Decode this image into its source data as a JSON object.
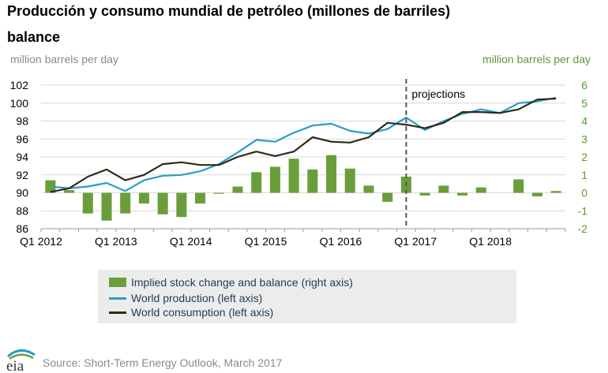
{
  "header": {
    "title": "Producción y consumo mundial de petróleo (millones de barriles)",
    "subtitle": "balance",
    "left_axis_label": "million barrels per day",
    "right_axis_label": "million barrels per day"
  },
  "legend": {
    "bars": "Implied stock change and balance (right axis)",
    "production": "World production (left axis)",
    "consumption": "World consumption (left axis)"
  },
  "footer": {
    "source": "Source: Short-Term Energy Outlook, March 2017",
    "logo_text": "eia"
  },
  "colors": {
    "bars": "#6a9e3b",
    "production": "#2a9cc8",
    "consumption": "#2e2a16",
    "projection_line": "#555555",
    "right_axis_text": "#5a9a3a"
  },
  "chart_data": {
    "type": "bar+line",
    "title": "Producción y consumo mundial de petróleo (millones de barriles)",
    "subtitle": "balance",
    "ylabel_left": "million barrels per day",
    "ylabel_right": "million barrels per day",
    "ylim_left": [
      86,
      102
    ],
    "ylim_right": [
      -2,
      6
    ],
    "yticks_left": [
      "86",
      "88",
      "90",
      "92",
      "94",
      "96",
      "98",
      "100",
      "102"
    ],
    "yticks_right": [
      "-2",
      "-1",
      "0",
      "1",
      "2",
      "3",
      "4",
      "5",
      "6"
    ],
    "xtick_labels": [
      "Q1 2012",
      "Q1 2013",
      "Q1 2014",
      "Q1 2015",
      "Q1 2016",
      "Q1 2017",
      "Q1 2018"
    ],
    "xtick_index": [
      0,
      4,
      8,
      12,
      16,
      20,
      24
    ],
    "quarters": [
      "2012Q1",
      "2012Q2",
      "2012Q3",
      "2012Q4",
      "2013Q1",
      "2013Q2",
      "2013Q3",
      "2013Q4",
      "2014Q1",
      "2014Q2",
      "2014Q3",
      "2014Q4",
      "2015Q1",
      "2015Q2",
      "2015Q3",
      "2015Q4",
      "2016Q1",
      "2016Q2",
      "2016Q3",
      "2016Q4",
      "2017Q1",
      "2017Q2",
      "2017Q3",
      "2017Q4",
      "2018Q1",
      "2018Q2",
      "2018Q3",
      "2018Q4"
    ],
    "projection_start_index": 19.5,
    "annotation": "projections",
    "series": [
      {
        "name": "Implied stock change and balance (right axis)",
        "type": "bar",
        "axis": "right",
        "values": [
          0.7,
          0.15,
          -1.15,
          -1.55,
          -1.15,
          -0.6,
          -1.2,
          -1.35,
          -0.6,
          -0.05,
          0.35,
          1.15,
          1.45,
          1.9,
          1.3,
          2.1,
          1.35,
          0.4,
          -0.5,
          0.9,
          -0.15,
          0.4,
          -0.15,
          0.3,
          0,
          0.75,
          -0.2,
          0.1
        ]
      },
      {
        "name": "World production (left axis)",
        "type": "line",
        "axis": "left",
        "values": [
          90.7,
          90.5,
          90.7,
          91.1,
          90.2,
          91.4,
          91.9,
          92.0,
          92.4,
          93.2,
          94.5,
          95.9,
          95.7,
          96.7,
          97.5,
          97.7,
          96.9,
          96.6,
          97.1,
          98.4,
          97.0,
          98.0,
          98.8,
          99.3,
          98.9,
          100.0,
          100.2,
          100.6
        ]
      },
      {
        "name": "World consumption (left axis)",
        "type": "line",
        "axis": "left",
        "values": [
          90.1,
          90.5,
          91.8,
          92.6,
          91.4,
          92.0,
          93.2,
          93.4,
          93.1,
          93.1,
          94.0,
          94.6,
          94.1,
          94.6,
          96.2,
          95.7,
          95.6,
          96.2,
          97.8,
          97.6,
          97.2,
          97.8,
          99.0,
          99.0,
          98.9,
          99.3,
          100.4,
          100.5
        ]
      }
    ]
  }
}
